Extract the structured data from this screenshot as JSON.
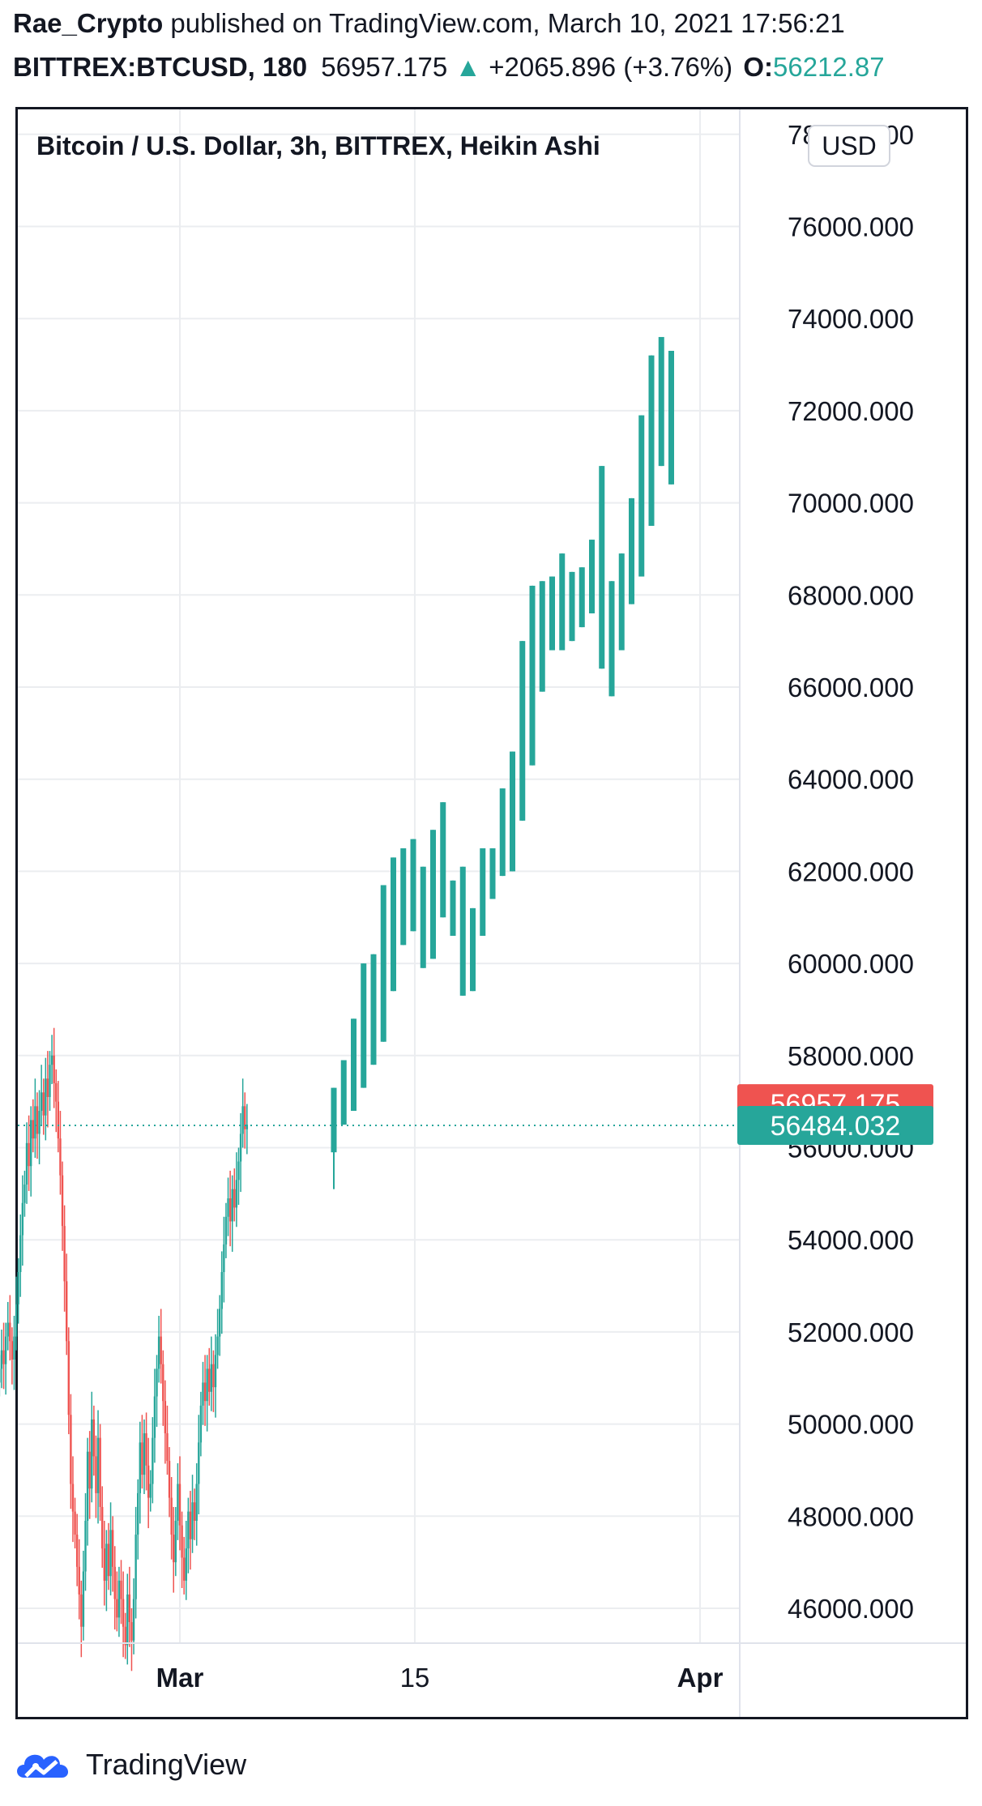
{
  "header": {
    "author": "Rae_Crypto",
    "published_text": "published on TradingView.com, March 10, 2021 17:56:21",
    "symbol": "BITTREX:BTCUSD, 180",
    "last_price": "56957.175",
    "change": "+2065.896 (+3.76%)",
    "open_label": "O:",
    "open_value": "56212.87"
  },
  "chart_title": "Bitcoin / U.S. Dollar, 3h, BITTREX, Heikin Ashi",
  "currency_button": "USD",
  "price_labels": {
    "last": "56957.175",
    "projected": "56484.032"
  },
  "footer": {
    "brand": "TradingView"
  },
  "colors": {
    "up": "#26a69a",
    "down": "#ef5350",
    "grid": "#ebedf0",
    "text": "#131722",
    "frame": "#131722"
  },
  "chart_data": {
    "type": "candlestick",
    "style": "Heikin Ashi",
    "title": "Bitcoin / U.S. Dollar, 3h, BITTREX, Heikin Ashi",
    "ylim": [
      45000,
      78500
    ],
    "y_ticks": [
      "46000.000",
      "48000.000",
      "50000.000",
      "52000.000",
      "54000.000",
      "56000.000",
      "58000.000",
      "60000.000",
      "62000.000",
      "64000.000",
      "66000.000",
      "68000.000",
      "70000.000",
      "72000.000",
      "74000.000",
      "76000.000",
      "78000.000"
    ],
    "x_ticks": [
      {
        "label": "Mar",
        "value": 0
      },
      {
        "label": "15",
        "value": 14
      },
      {
        "label": "Apr",
        "value": 31
      }
    ],
    "xlim": [
      -10.8,
      37.1
    ],
    "grid": true,
    "historical": {
      "x_start": -10.75,
      "x_step": 0.125,
      "closes": [
        51200,
        51600,
        51300,
        51900,
        52200,
        51800,
        51400,
        51900,
        52600,
        53300,
        54100,
        54800,
        55200,
        56100,
        55600,
        56600,
        56200,
        56900,
        56300,
        56800,
        57200,
        56700,
        57500,
        57100,
        57800,
        58000,
        57400,
        57000,
        56200,
        55400,
        54300,
        53100,
        51800,
        50200,
        48700,
        48100,
        47600,
        46900,
        46300,
        45600,
        46800,
        47900,
        49400,
        48600,
        50100,
        49300,
        48500,
        49700,
        48200,
        47300,
        46600,
        47400,
        46700,
        47700,
        46900,
        46200,
        45800,
        46600,
        46200,
        45600,
        45200,
        46300,
        45700,
        45300,
        46200,
        47600,
        48500,
        49600,
        48900,
        49800,
        49100,
        48400,
        48700,
        49700,
        50600,
        51200,
        51900,
        51300,
        50500,
        49800,
        49200,
        48400,
        47600,
        47000,
        47900,
        48700,
        47800,
        47100,
        46600,
        47300,
        48100,
        47500,
        48300,
        47900,
        48700,
        49600,
        50400,
        50900,
        50500,
        51200,
        50700,
        51300,
        50800,
        51500,
        51900,
        52500,
        53300,
        53900,
        54500,
        54900,
        54400,
        55100,
        54700,
        55300,
        55700,
        56300,
        56900,
        56400,
        56500
      ]
    },
    "candles": [
      {
        "open": 55900,
        "high": 57300,
        "low": 55100,
        "close": 57300
      },
      {
        "open": 56500,
        "high": 57900,
        "low": 56500,
        "close": 57900
      },
      {
        "open": 56800,
        "high": 58800,
        "low": 56800,
        "close": 58800
      },
      {
        "open": 57300,
        "high": 60000,
        "low": 57300,
        "close": 60000
      },
      {
        "open": 57800,
        "high": 60200,
        "low": 57800,
        "close": 60200
      },
      {
        "open": 58300,
        "high": 61700,
        "low": 58300,
        "close": 61700
      },
      {
        "open": 59400,
        "high": 62300,
        "low": 59400,
        "close": 62300
      },
      {
        "open": 60400,
        "high": 62500,
        "low": 60400,
        "close": 62500
      },
      {
        "open": 60700,
        "high": 62700,
        "low": 60700,
        "close": 62700
      },
      {
        "open": 59900,
        "high": 62100,
        "low": 59900,
        "close": 62100
      },
      {
        "open": 60100,
        "high": 62900,
        "low": 60100,
        "close": 62900
      },
      {
        "open": 61000,
        "high": 63500,
        "low": 61000,
        "close": 63500
      },
      {
        "open": 60600,
        "high": 61800,
        "low": 60600,
        "close": 61800
      },
      {
        "open": 59300,
        "high": 62100,
        "low": 59300,
        "close": 62100
      },
      {
        "open": 59400,
        "high": 61200,
        "low": 59400,
        "close": 61200
      },
      {
        "open": 60600,
        "high": 62500,
        "low": 60600,
        "close": 62500
      },
      {
        "open": 61400,
        "high": 62500,
        "low": 61400,
        "close": 62500
      },
      {
        "open": 61900,
        "high": 63800,
        "low": 61900,
        "close": 63800
      },
      {
        "open": 62000,
        "high": 64600,
        "low": 62000,
        "close": 64600
      },
      {
        "open": 63100,
        "high": 67000,
        "low": 63100,
        "close": 67000
      },
      {
        "open": 64300,
        "high": 68200,
        "low": 64300,
        "close": 68200
      },
      {
        "open": 65900,
        "high": 68300,
        "low": 65900,
        "close": 68300
      },
      {
        "open": 66800,
        "high": 68400,
        "low": 66800,
        "close": 68400
      },
      {
        "open": 66800,
        "high": 68900,
        "low": 66800,
        "close": 68900
      },
      {
        "open": 67000,
        "high": 68500,
        "low": 67000,
        "close": 68500
      },
      {
        "open": 67300,
        "high": 68600,
        "low": 67300,
        "close": 68600
      },
      {
        "open": 67600,
        "high": 69200,
        "low": 67600,
        "close": 69200
      },
      {
        "open": 66400,
        "high": 70800,
        "low": 66400,
        "close": 70800
      },
      {
        "open": 65800,
        "high": 68300,
        "low": 65800,
        "close": 68300
      },
      {
        "open": 66800,
        "high": 68900,
        "low": 66800,
        "close": 68900
      },
      {
        "open": 67800,
        "high": 70100,
        "low": 67800,
        "close": 70100
      },
      {
        "open": 68400,
        "high": 71900,
        "low": 68400,
        "close": 71900
      },
      {
        "open": 69500,
        "high": 73200,
        "low": 69500,
        "close": 73200
      },
      {
        "open": 70800,
        "high": 73600,
        "low": 70800,
        "close": 73600
      },
      {
        "open": 70400,
        "high": 73300,
        "low": 70400,
        "close": 73300
      }
    ],
    "last_price": 56957.175,
    "projected_price": 56484.032
  }
}
